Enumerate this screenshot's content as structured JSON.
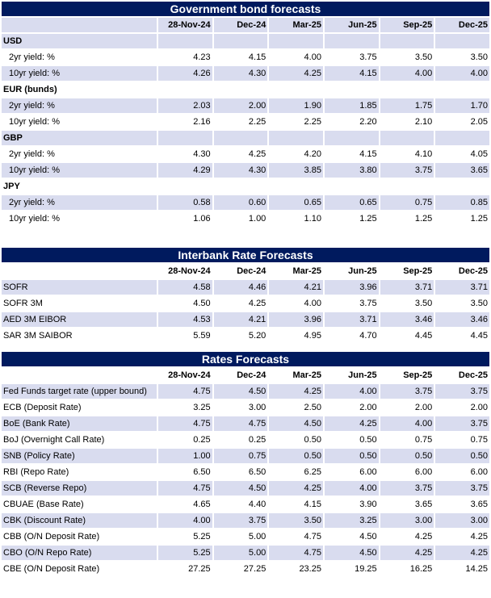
{
  "bond": {
    "title": "Government bond forecasts",
    "headers": [
      "28-Nov-24",
      "Dec-24",
      "Mar-25",
      "Jun-25",
      "Sep-25",
      "Dec-25"
    ],
    "groups": [
      {
        "name": "USD",
        "rows": [
          {
            "label": "2yr yield: %",
            "values": [
              "4.23",
              "4.15",
              "4.00",
              "3.75",
              "3.50",
              "3.50"
            ]
          },
          {
            "label": "10yr yield: %",
            "values": [
              "4.26",
              "4.30",
              "4.25",
              "4.15",
              "4.00",
              "4.00"
            ]
          }
        ]
      },
      {
        "name": "EUR (bunds)",
        "rows": [
          {
            "label": "2yr yield: %",
            "values": [
              "2.03",
              "2.00",
              "1.90",
              "1.85",
              "1.75",
              "1.70"
            ]
          },
          {
            "label": "10yr yield: %",
            "values": [
              "2.16",
              "2.25",
              "2.25",
              "2.20",
              "2.10",
              "2.05"
            ]
          }
        ]
      },
      {
        "name": "GBP",
        "rows": [
          {
            "label": "2yr yield: %",
            "values": [
              "4.30",
              "4.25",
              "4.20",
              "4.15",
              "4.10",
              "4.05"
            ]
          },
          {
            "label": "10yr yield: %",
            "values": [
              "4.29",
              "4.30",
              "3.85",
              "3.80",
              "3.75",
              "3.65"
            ]
          }
        ]
      },
      {
        "name": "JPY",
        "rows": [
          {
            "label": "2yr yield: %",
            "values": [
              "0.58",
              "0.60",
              "0.65",
              "0.65",
              "0.75",
              "0.85"
            ]
          },
          {
            "label": "10yr yield: %",
            "values": [
              "1.06",
              "1.00",
              "1.10",
              "1.25",
              "1.25",
              "1.25"
            ]
          }
        ]
      }
    ]
  },
  "interbank": {
    "title": "Interbank Rate Forecasts",
    "headers": [
      "28-Nov-24",
      "Dec-24",
      "Mar-25",
      "Jun-25",
      "Sep-25",
      "Dec-25"
    ],
    "rows": [
      {
        "label": "SOFR",
        "values": [
          "4.58",
          "4.46",
          "4.21",
          "3.96",
          "3.71",
          "3.71"
        ]
      },
      {
        "label": "SOFR 3M",
        "values": [
          "4.50",
          "4.25",
          "4.00",
          "3.75",
          "3.50",
          "3.50"
        ]
      },
      {
        "label": "AED 3M EIBOR",
        "values": [
          "4.53",
          "4.21",
          "3.96",
          "3.71",
          "3.46",
          "3.46"
        ]
      },
      {
        "label": "SAR 3M SAIBOR",
        "values": [
          "5.59",
          "5.20",
          "4.95",
          "4.70",
          "4.45",
          "4.45"
        ]
      }
    ]
  },
  "rates": {
    "title": "Rates Forecasts",
    "headers": [
      "28-Nov-24",
      "Dec-24",
      "Mar-25",
      "Jun-25",
      "Sep-25",
      "Dec-25"
    ],
    "rows": [
      {
        "label": "Fed Funds target rate (upper bound)",
        "values": [
          "4.75",
          "4.50",
          "4.25",
          "4.00",
          "3.75",
          "3.75"
        ]
      },
      {
        "label": "ECB (Deposit Rate)",
        "values": [
          "3.25",
          "3.00",
          "2.50",
          "2.00",
          "2.00",
          "2.00"
        ]
      },
      {
        "label": "BoE (Bank Rate)",
        "values": [
          "4.75",
          "4.75",
          "4.50",
          "4.25",
          "4.00",
          "3.75"
        ]
      },
      {
        "label": "BoJ (Overnight Call Rate)",
        "values": [
          "0.25",
          "0.25",
          "0.50",
          "0.50",
          "0.75",
          "0.75"
        ]
      },
      {
        "label": "SNB (Policy Rate)",
        "values": [
          "1.00",
          "0.75",
          "0.50",
          "0.50",
          "0.50",
          "0.50"
        ]
      },
      {
        "label": "RBI (Repo Rate)",
        "values": [
          "6.50",
          "6.50",
          "6.25",
          "6.00",
          "6.00",
          "6.00"
        ]
      },
      {
        "label": "SCB (Reverse Repo)",
        "values": [
          "4.75",
          "4.50",
          "4.25",
          "4.00",
          "3.75",
          "3.75"
        ]
      },
      {
        "label": "CBUAE (Base Rate)",
        "values": [
          "4.65",
          "4.40",
          "4.15",
          "3.90",
          "3.65",
          "3.65"
        ]
      },
      {
        "label": "CBK (Discount Rate)",
        "values": [
          "4.00",
          "3.75",
          "3.50",
          "3.25",
          "3.00",
          "3.00"
        ]
      },
      {
        "label": "CBB (O/N Deposit Rate)",
        "values": [
          "5.25",
          "5.00",
          "4.75",
          "4.50",
          "4.25",
          "4.25"
        ]
      },
      {
        "label": "CBO (O/N Repo Rate)",
        "values": [
          "5.25",
          "5.00",
          "4.75",
          "4.50",
          "4.25",
          "4.25"
        ]
      },
      {
        "label": "CBE (O/N Deposit Rate)",
        "values": [
          "27.25",
          "27.25",
          "23.25",
          "19.25",
          "16.25",
          "14.25"
        ]
      }
    ]
  }
}
